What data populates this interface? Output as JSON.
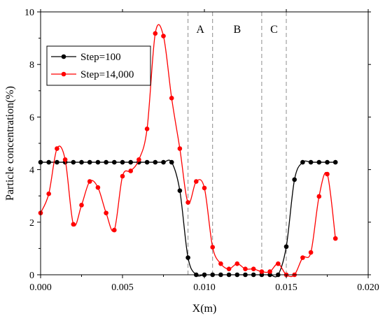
{
  "chart_data": {
    "type": "line",
    "xlabel": "X(m)",
    "ylabel": "Particle concentration(%)",
    "xlim": [
      0,
      0.02
    ],
    "ylim": [
      0,
      10
    ],
    "x_ticks": [
      "0.000",
      "0.005",
      "0.010",
      "0.015",
      "0.020"
    ],
    "y_ticks": [
      "0",
      "2",
      "4",
      "6",
      "8",
      "10"
    ],
    "legend_position": "upper-left",
    "regions": [
      {
        "label": "A",
        "x_start": 0.009,
        "x_end": 0.0105
      },
      {
        "label": "B",
        "x_start": 0.0105,
        "x_end": 0.0135
      },
      {
        "label": "C",
        "x_start": 0.0135,
        "x_end": 0.015
      }
    ],
    "series": [
      {
        "name": "Step=100",
        "color": "#000000",
        "points": [
          [
            0.0,
            4.28
          ],
          [
            0.0005,
            4.28
          ],
          [
            0.001,
            4.28
          ],
          [
            0.0015,
            4.28
          ],
          [
            0.002,
            4.28
          ],
          [
            0.0025,
            4.28
          ],
          [
            0.003,
            4.28
          ],
          [
            0.0035,
            4.28
          ],
          [
            0.004,
            4.28
          ],
          [
            0.0045,
            4.28
          ],
          [
            0.005,
            4.28
          ],
          [
            0.0055,
            4.28
          ],
          [
            0.006,
            4.28
          ],
          [
            0.0065,
            4.28
          ],
          [
            0.007,
            4.28
          ],
          [
            0.0075,
            4.28
          ],
          [
            0.008,
            4.28
          ],
          [
            0.0085,
            3.2
          ],
          [
            0.009,
            0.65
          ],
          [
            0.0095,
            0.0
          ],
          [
            0.01,
            0.0
          ],
          [
            0.0105,
            0.0
          ],
          [
            0.011,
            0.0
          ],
          [
            0.0115,
            0.0
          ],
          [
            0.012,
            0.0
          ],
          [
            0.0125,
            0.0
          ],
          [
            0.013,
            0.0
          ],
          [
            0.0135,
            0.0
          ],
          [
            0.014,
            0.0
          ],
          [
            0.0145,
            0.0
          ],
          [
            0.015,
            1.07
          ],
          [
            0.0155,
            3.62
          ],
          [
            0.016,
            4.28
          ],
          [
            0.0165,
            4.28
          ],
          [
            0.017,
            4.28
          ],
          [
            0.0175,
            4.28
          ],
          [
            0.018,
            4.28
          ]
        ]
      },
      {
        "name": "Step=14,000",
        "color": "#ff0000",
        "points": [
          [
            0.0,
            2.35
          ],
          [
            0.0005,
            3.08
          ],
          [
            0.001,
            4.8
          ],
          [
            0.0015,
            4.38
          ],
          [
            0.002,
            1.92
          ],
          [
            0.0025,
            2.65
          ],
          [
            0.003,
            3.55
          ],
          [
            0.0035,
            3.32
          ],
          [
            0.004,
            2.35
          ],
          [
            0.0045,
            1.7
          ],
          [
            0.005,
            3.75
          ],
          [
            0.0055,
            3.95
          ],
          [
            0.006,
            4.38
          ],
          [
            0.0065,
            5.55
          ],
          [
            0.007,
            9.18
          ],
          [
            0.0075,
            9.08
          ],
          [
            0.008,
            6.72
          ],
          [
            0.0085,
            4.8
          ],
          [
            0.009,
            2.75
          ],
          [
            0.0095,
            3.55
          ],
          [
            0.01,
            3.3
          ],
          [
            0.0105,
            1.05
          ],
          [
            0.011,
            0.42
          ],
          [
            0.0115,
            0.22
          ],
          [
            0.012,
            0.42
          ],
          [
            0.0125,
            0.22
          ],
          [
            0.013,
            0.22
          ],
          [
            0.0135,
            0.12
          ],
          [
            0.014,
            0.12
          ],
          [
            0.0145,
            0.42
          ],
          [
            0.015,
            0.0
          ],
          [
            0.0155,
            0.0
          ],
          [
            0.016,
            0.65
          ],
          [
            0.0165,
            0.85
          ],
          [
            0.017,
            2.98
          ],
          [
            0.0175,
            3.83
          ],
          [
            0.018,
            1.38
          ]
        ]
      }
    ]
  }
}
